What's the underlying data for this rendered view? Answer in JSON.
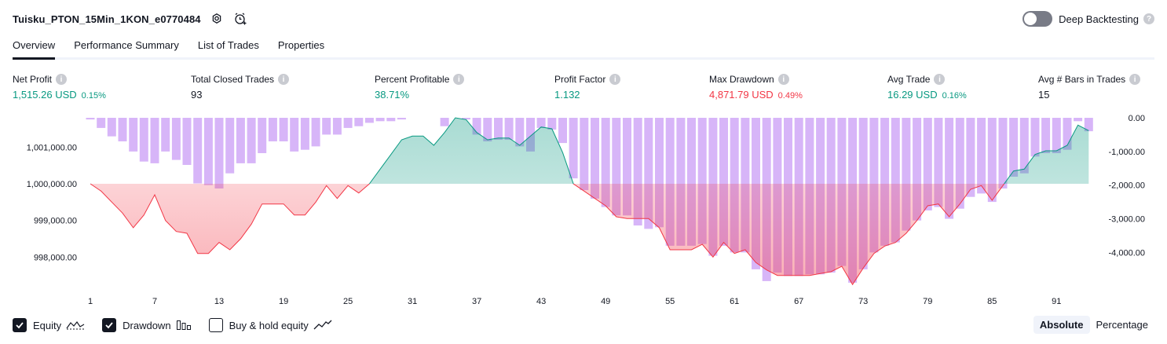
{
  "header": {
    "strategy_name": "Tuisku_PTON_15Min_1KON_e0770484",
    "settings_icon": "gear-icon",
    "alert_icon": "alarm-clock-plus-icon",
    "deep_backtesting_label": "Deep Backtesting",
    "deep_backtesting_enabled": false
  },
  "tabs": [
    {
      "label": "Overview",
      "active": true
    },
    {
      "label": "Performance Summary",
      "active": false
    },
    {
      "label": "List of Trades",
      "active": false
    },
    {
      "label": "Properties",
      "active": false
    }
  ],
  "metrics": [
    {
      "label": "Net Profit",
      "value": "1,515.26 USD",
      "pct": "0.15%",
      "color": "green"
    },
    {
      "label": "Total Closed Trades",
      "value": "93",
      "pct": "",
      "color": "neutral"
    },
    {
      "label": "Percent Profitable",
      "value": "38.71%",
      "pct": "",
      "color": "green"
    },
    {
      "label": "Profit Factor",
      "value": "1.132",
      "pct": "",
      "color": "green"
    },
    {
      "label": "Max Drawdown",
      "value": "4,871.79 USD",
      "pct": "0.49%",
      "color": "red"
    },
    {
      "label": "Avg Trade",
      "value": "16.29 USD",
      "pct": "0.16%",
      "color": "green"
    },
    {
      "label": "Avg # Bars in Trades",
      "value": "15",
      "pct": "",
      "color": "neutral"
    }
  ],
  "colors": {
    "profit": "#089981",
    "loss": "#f23645",
    "drawdown_bar": "#c99cf6",
    "equity_fill_profit": "#d4efe8",
    "equity_fill_loss": "#f9d4d7",
    "text": "#131722"
  },
  "chart_data": {
    "type": "area",
    "title": "",
    "x_tick_labels": [
      "1",
      "7",
      "13",
      "19",
      "25",
      "31",
      "37",
      "43",
      "49",
      "55",
      "61",
      "67",
      "73",
      "79",
      "85",
      "91"
    ],
    "left_axis": {
      "labels": [
        "1,001,000.00",
        "1,000,000.00",
        "999,000.00",
        "998,000.00"
      ],
      "ticks": [
        1001000,
        1000000,
        999000,
        998000
      ],
      "range": [
        997300,
        1001800
      ]
    },
    "right_axis": {
      "labels": [
        "0.00",
        "-1,000.00",
        "-2,000.00",
        "-3,000.00",
        "-4,000.00"
      ],
      "ticks": [
        0,
        -1000,
        -2000,
        -3000,
        -4000
      ],
      "range": [
        -4900,
        0
      ]
    },
    "initial_capital": 1000000,
    "series": [
      {
        "name": "Equity",
        "x": [
          1,
          2,
          3,
          4,
          5,
          6,
          7,
          8,
          9,
          10,
          11,
          12,
          13,
          14,
          15,
          16,
          17,
          18,
          19,
          20,
          21,
          22,
          23,
          24,
          25,
          26,
          27,
          28,
          29,
          30,
          31,
          32,
          33,
          34,
          35,
          36,
          37,
          38,
          39,
          40,
          41,
          42,
          43,
          44,
          45,
          46,
          47,
          48,
          49,
          50,
          51,
          52,
          53,
          54,
          55,
          56,
          57,
          58,
          59,
          60,
          61,
          62,
          63,
          64,
          65,
          66,
          67,
          68,
          69,
          70,
          71,
          72,
          73,
          74,
          75,
          76,
          77,
          78,
          79,
          80,
          81,
          82,
          83,
          84,
          85,
          86,
          87,
          88,
          89,
          90,
          91,
          92,
          93,
          94
        ],
        "values": [
          1000000,
          999800,
          999500,
          999200,
          998800,
          999150,
          999700,
          999000,
          998700,
          998650,
          998100,
          998100,
          998400,
          998200,
          998500,
          998900,
          999450,
          999450,
          999450,
          999150,
          999150,
          999500,
          999950,
          999600,
          999950,
          999750,
          1000000,
          1000400,
          1000800,
          1001200,
          1001300,
          1001300,
          1001050,
          1001400,
          1001800,
          1001750,
          1001400,
          1001200,
          1001250,
          1001250,
          1001050,
          1001300,
          1001550,
          1001500,
          1000850,
          1000000,
          999800,
          999600,
          999400,
          999100,
          999050,
          999050,
          999050,
          998800,
          998200,
          998200,
          998200,
          998350,
          998000,
          998400,
          998100,
          998200,
          997850,
          997650,
          997500,
          997500,
          997500,
          997500,
          997550,
          997600,
          997750,
          997250,
          997700,
          998100,
          998300,
          998400,
          998650,
          999000,
          999400,
          999450,
          999100,
          999450,
          999850,
          999950,
          999550,
          999950,
          1000350,
          1000400,
          1000800,
          1000900,
          1000900,
          1001050,
          1001600,
          1001450
        ]
      },
      {
        "name": "Drawdown",
        "x": [
          1,
          2,
          3,
          4,
          5,
          6,
          7,
          8,
          9,
          10,
          11,
          12,
          13,
          14,
          15,
          16,
          17,
          18,
          19,
          20,
          21,
          22,
          23,
          24,
          25,
          26,
          27,
          28,
          29,
          30,
          31,
          32,
          33,
          34,
          35,
          36,
          37,
          38,
          39,
          40,
          41,
          42,
          43,
          44,
          45,
          46,
          47,
          48,
          49,
          50,
          51,
          52,
          53,
          54,
          55,
          56,
          57,
          58,
          59,
          60,
          61,
          62,
          63,
          64,
          65,
          66,
          67,
          68,
          69,
          70,
          71,
          72,
          73,
          74,
          75,
          76,
          77,
          78,
          79,
          80,
          81,
          82,
          83,
          84,
          85,
          86,
          87,
          88,
          89,
          90,
          91,
          92,
          93,
          94
        ],
        "values": [
          -50,
          -300,
          -550,
          -700,
          -1000,
          -1300,
          -1350,
          -1000,
          -1250,
          -1400,
          -1950,
          -2000,
          -2100,
          -1650,
          -1350,
          -1350,
          -1050,
          -700,
          -700,
          -1000,
          -950,
          -850,
          -500,
          -500,
          -300,
          -250,
          -150,
          -100,
          -100,
          -50,
          0,
          0,
          0,
          -250,
          0,
          -50,
          -500,
          -700,
          -650,
          -650,
          -850,
          -1000,
          -300,
          -350,
          -750,
          -1800,
          -2150,
          -2400,
          -2650,
          -2900,
          -2900,
          -3200,
          -3300,
          -3250,
          -3800,
          -3800,
          -3800,
          -3750,
          -4100,
          -3800,
          -4000,
          -4000,
          -4500,
          -4850,
          -4600,
          -4700,
          -4700,
          -4650,
          -4650,
          -4600,
          -4400,
          -4900,
          -4500,
          -4000,
          -3800,
          -3700,
          -3350,
          -3050,
          -2750,
          -2650,
          -3000,
          -2700,
          -2350,
          -2250,
          -2500,
          -2100,
          -1750,
          -1650,
          -1150,
          -1050,
          -1050,
          -950,
          -100,
          -400
        ]
      }
    ]
  },
  "footer": {
    "equity_label": "Equity",
    "equity_checked": true,
    "equity_icon": "equity-line-icon",
    "drawdown_label": "Drawdown",
    "drawdown_checked": true,
    "drawdown_icon": "bars-icon",
    "buy_hold_label": "Buy & hold equity",
    "buy_hold_checked": false,
    "buy_hold_icon": "trend-line-icon",
    "absolute_label": "Absolute",
    "percentage_label": "Percentage",
    "mode": "Absolute"
  }
}
